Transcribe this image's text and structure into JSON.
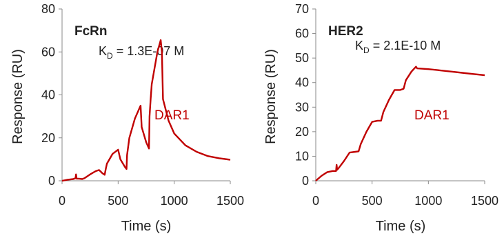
{
  "chart_data": [
    {
      "type": "line",
      "title": "FcRn",
      "annotation": {
        "prefix": "K",
        "subscript": "D",
        "text": " = 1.3E-07 M"
      },
      "xlabel": "Time (s)",
      "ylabel": "Response (RU)",
      "xlim": [
        0,
        1500
      ],
      "ylim": [
        0,
        80
      ],
      "xticks": [
        0,
        500,
        1000,
        1500
      ],
      "yticks": [
        0,
        20,
        40,
        60,
        80
      ],
      "grid": false,
      "legend": "none",
      "series": [
        {
          "name": "DAR1",
          "color": "#c00000",
          "x": [
            0,
            50,
            100,
            120,
            125,
            130,
            150,
            180,
            200,
            250,
            300,
            330,
            360,
            380,
            390,
            400,
            450,
            500,
            520,
            560,
            575,
            580,
            600,
            650,
            700,
            710,
            750,
            775,
            780,
            790,
            800,
            850,
            880,
            890,
            900,
            950,
            1000,
            1100,
            1200,
            1300,
            1400,
            1500
          ],
          "y": [
            0,
            0.5,
            0.8,
            1.2,
            3.0,
            1.0,
            1.0,
            0.8,
            1.2,
            3.0,
            4.5,
            5.0,
            3.5,
            2.8,
            5.5,
            8.0,
            12.5,
            14.5,
            10.0,
            6.5,
            5.5,
            12.0,
            20.0,
            29.0,
            35.0,
            25.0,
            18.0,
            15.0,
            30.0,
            38.0,
            45.0,
            60.0,
            65.5,
            60.0,
            38.0,
            28.0,
            22.0,
            16.5,
            13.5,
            11.5,
            10.5,
            9.8
          ]
        }
      ]
    },
    {
      "type": "line",
      "title": "HER2",
      "annotation": {
        "prefix": "K",
        "subscript": "D",
        "text": " = 2.1E-10 M"
      },
      "xlabel": "Time (s)",
      "ylabel": "Response (RU)",
      "xlim": [
        0,
        1500
      ],
      "ylim": [
        0,
        70
      ],
      "xticks": [
        0,
        500,
        1000,
        1500
      ],
      "yticks": [
        0,
        10,
        20,
        30,
        40,
        50,
        60,
        70
      ],
      "grid": false,
      "legend": "none",
      "series": [
        {
          "name": "DAR1",
          "color": "#c00000",
          "x": [
            0,
            50,
            100,
            150,
            180,
            185,
            190,
            200,
            250,
            300,
            350,
            380,
            400,
            450,
            500,
            550,
            580,
            600,
            650,
            700,
            750,
            780,
            800,
            850,
            880,
            890,
            900,
            1000,
            1100,
            1200,
            1300,
            1400,
            1500
          ],
          "y": [
            0,
            2.0,
            3.5,
            4.0,
            4.0,
            6.5,
            4.5,
            5.0,
            8.0,
            11.5,
            11.8,
            12.0,
            15.0,
            20.0,
            24.0,
            24.5,
            24.5,
            28.0,
            33.0,
            37.0,
            37.0,
            37.5,
            41.0,
            44.5,
            46.0,
            46.5,
            45.8,
            45.5,
            45.0,
            44.5,
            44.0,
            43.5,
            43.0
          ]
        }
      ]
    }
  ]
}
